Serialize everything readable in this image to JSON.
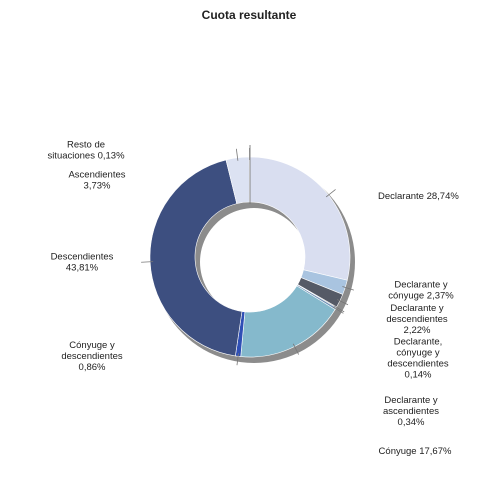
{
  "chart_data": {
    "type": "pie",
    "title": "Cuota resultante",
    "slices": [
      {
        "name": "Declarante",
        "value": 28.74,
        "label_lines": [
          "Declarante 28,74%"
        ],
        "color": "#d9def0"
      },
      {
        "name": "Declarante y cónyuge",
        "value": 2.37,
        "label_lines": [
          "Declarante y",
          "cónyuge 2,37%"
        ],
        "color": "#a9c4e0"
      },
      {
        "name": "Declarante y descendientes",
        "value": 2.22,
        "label_lines": [
          "Declarante y",
          "descendientes",
          "2,22%"
        ],
        "color": "#555a66"
      },
      {
        "name": "Declarante, cónyuge y descendientes",
        "value": 0.14,
        "label_lines": [
          "Declarante,",
          "cónyuge y",
          "descendientes",
          "0,14%"
        ],
        "color": "#3a3f4a"
      },
      {
        "name": "Declarante y ascendientes",
        "value": 0.34,
        "label_lines": [
          "Declarante y",
          "ascendientes",
          "0,34%"
        ],
        "color": "#6e8fb5"
      },
      {
        "name": "Cónyuge",
        "value": 17.67,
        "label_lines": [
          "Cónyuge 17,67%"
        ],
        "color": "#85b9cc"
      },
      {
        "name": "Cónyuge y descendientes",
        "value": 0.86,
        "label_lines": [
          "Cónyuge y",
          "descendientes",
          "0,86%"
        ],
        "color": "#2f4fb5"
      },
      {
        "name": "Descendientes",
        "value": 43.81,
        "label_lines": [
          "Descendientes",
          "43,81%"
        ],
        "color": "#3d4f80"
      },
      {
        "name": "Ascendientes",
        "value": 3.73,
        "label_lines": [
          "Ascendientes",
          "3,73%"
        ],
        "color": "#dce2f2"
      },
      {
        "name": "Resto de situaciones",
        "value": 0.13,
        "label_lines": [
          "Resto de",
          "situaciones 0,13%"
        ],
        "color": "#8a93ad"
      }
    ]
  }
}
